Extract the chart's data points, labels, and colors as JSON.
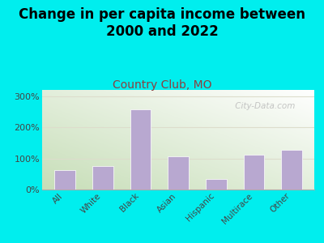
{
  "title": "Change in per capita income between\n2000 and 2022",
  "subtitle": "Country Club, MO",
  "categories": [
    "All",
    "White",
    "Black",
    "Asian",
    "Hispanic",
    "Multirace",
    "Other"
  ],
  "values": [
    62,
    75,
    258,
    107,
    35,
    113,
    128
  ],
  "bar_color": "#b8a8d0",
  "background_outer": "#00EEEE",
  "ylim": [
    0,
    320
  ],
  "yticks": [
    0,
    100,
    200,
    300
  ],
  "ytick_labels": [
    "0%",
    "100%",
    "200%",
    "300%"
  ],
  "watermark": " City-Data.com",
  "title_fontsize": 12,
  "subtitle_fontsize": 10,
  "subtitle_color": "#8B4040",
  "tick_color": "#444444",
  "watermark_color": "#bbbbbb",
  "gridline_color": "#ddddcc",
  "bar_edge_color": "white"
}
